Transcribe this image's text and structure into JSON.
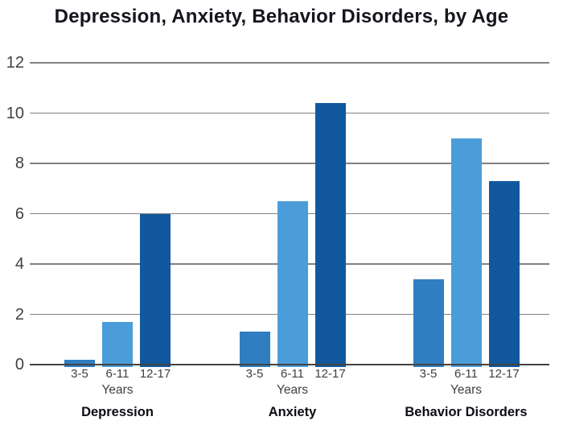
{
  "chart_data": {
    "type": "bar",
    "title": "Depression, Anxiety, Behavior Disorders, by Age",
    "ylabel": "",
    "xlabel": "",
    "ylim": [
      0,
      12
    ],
    "y_ticks": [
      0,
      2,
      4,
      6,
      8,
      10,
      12
    ],
    "grid": true,
    "legend_position": "none",
    "categories": [
      "3-5",
      "6-11",
      "12-17"
    ],
    "category_unit_label": "Years",
    "category_colors": [
      "#2f7ec2",
      "#4b9dd9",
      "#11589e"
    ],
    "groups": [
      {
        "label": "Depression",
        "values": [
          0.2,
          1.7,
          6.0
        ]
      },
      {
        "label": "Anxiety",
        "values": [
          1.3,
          6.5,
          10.4
        ]
      },
      {
        "label": "Behavior Disorders",
        "values": [
          3.4,
          9.0,
          7.3
        ]
      }
    ]
  },
  "colors": {
    "gridline": "#818181",
    "baseline": "#434343",
    "title_text": "#15151d",
    "axis_text": "#404040"
  }
}
